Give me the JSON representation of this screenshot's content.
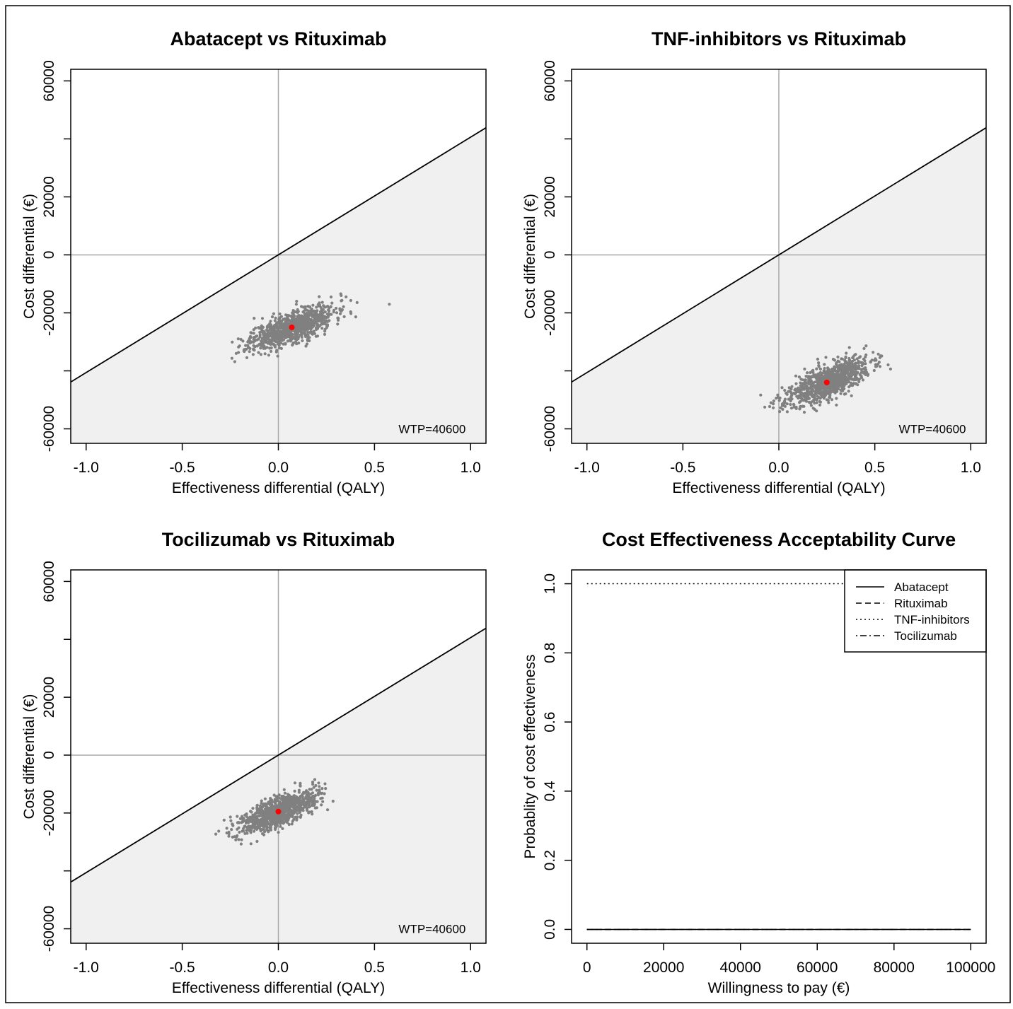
{
  "colors": {
    "scatter": "#808080",
    "mean_point": "#ff0000",
    "shade": "#f0f0f0",
    "zero_lines": "#a8a8a8"
  },
  "chart_data": [
    {
      "type": "scatter",
      "title": "Abatacept vs Rituximab",
      "xlabel": "Effectiveness differential (QALY)",
      "ylabel": "Cost differential (€)",
      "xlim": [
        -1.08,
        1.08
      ],
      "ylim": [
        -65000,
        64000
      ],
      "xticks": [
        "-1.0",
        "-0.5",
        "0.0",
        "0.5",
        "1.0"
      ],
      "xtick_values": [
        -1.0,
        -0.5,
        0.0,
        0.5,
        1.0
      ],
      "yticks": [
        "-60000",
        "-20000",
        "0",
        "20000",
        "60000"
      ],
      "ytick_values": [
        -60000,
        -20000,
        0,
        20000,
        60000
      ],
      "yticks_unlabeled": [
        -40000,
        40000
      ],
      "wtp_label": "WTP=40600",
      "wtp": 40600,
      "mean": {
        "x": 0.07,
        "y": -25000
      },
      "cloud": {
        "n": 900,
        "x_mean": 0.07,
        "x_sd": 0.11,
        "y_mean": -25000,
        "y_sd": 3800,
        "corr": 0.7,
        "seed": 11
      },
      "region_shaded": "below-wtp-line",
      "grid": false
    },
    {
      "type": "scatter",
      "title": "TNF-inhibitors vs Rituximab",
      "xlabel": "Effectiveness differential (QALY)",
      "ylabel": "Cost differential (€)",
      "xlim": [
        -1.08,
        1.08
      ],
      "ylim": [
        -65000,
        64000
      ],
      "xticks": [
        "-1.0",
        "-0.5",
        "0.0",
        "0.5",
        "1.0"
      ],
      "xtick_values": [
        -1.0,
        -0.5,
        0.0,
        0.5,
        1.0
      ],
      "yticks": [
        "-60000",
        "-20000",
        "0",
        "20000",
        "60000"
      ],
      "ytick_values": [
        -60000,
        -20000,
        0,
        20000,
        60000
      ],
      "yticks_unlabeled": [
        -40000,
        40000
      ],
      "wtp_label": "WTP=40600",
      "wtp": 40600,
      "mean": {
        "x": 0.25,
        "y": -44000
      },
      "cloud": {
        "n": 900,
        "x_mean": 0.25,
        "x_sd": 0.11,
        "y_mean": -44000,
        "y_sd": 4000,
        "corr": 0.7,
        "seed": 23
      },
      "region_shaded": "below-wtp-line",
      "grid": false
    },
    {
      "type": "scatter",
      "title": "Tocilizumab vs Rituximab",
      "xlabel": "Effectiveness differential (QALY)",
      "ylabel": "Cost differential (€)",
      "xlim": [
        -1.08,
        1.08
      ],
      "ylim": [
        -65000,
        64000
      ],
      "xticks": [
        "-1.0",
        "-0.5",
        "0.0",
        "0.5",
        "1.0"
      ],
      "xtick_values": [
        -1.0,
        -0.5,
        0.0,
        0.5,
        1.0
      ],
      "yticks": [
        "-60000",
        "-20000",
        "0",
        "20000",
        "60000"
      ],
      "ytick_values": [
        -60000,
        -20000,
        0,
        20000,
        60000
      ],
      "yticks_unlabeled": [
        -40000,
        40000
      ],
      "wtp_label": "WTP=40600",
      "wtp": 40600,
      "mean": {
        "x": 0.0,
        "y": -19500
      },
      "cloud": {
        "n": 900,
        "x_mean": 0.0,
        "x_sd": 0.1,
        "y_mean": -19500,
        "y_sd": 3600,
        "corr": 0.7,
        "seed": 37
      },
      "region_shaded": "below-wtp-line",
      "grid": false
    },
    {
      "type": "line",
      "title": "Cost Effectiveness Acceptability Curve",
      "xlabel": "Willingness to pay (€)",
      "ylabel": "Probablity of cost effectiveness",
      "xlim": [
        -4000,
        104000
      ],
      "ylim": [
        -0.04,
        1.04
      ],
      "xticks": [
        "0",
        "20000",
        "40000",
        "60000",
        "80000",
        "100000"
      ],
      "xtick_values": [
        0,
        20000,
        40000,
        60000,
        80000,
        100000
      ],
      "yticks": [
        "0.0",
        "0.2",
        "0.4",
        "0.6",
        "0.8",
        "1.0"
      ],
      "ytick_values": [
        0.0,
        0.2,
        0.4,
        0.6,
        0.8,
        1.0
      ],
      "legend_position": "top-right",
      "series": [
        {
          "name": "Abatacept",
          "dash": "solid",
          "x": [
            0,
            100000
          ],
          "y": [
            0,
            0
          ]
        },
        {
          "name": "Rituximab",
          "dash": "dashed",
          "x": [
            0,
            100000
          ],
          "y": [
            0,
            0
          ]
        },
        {
          "name": "TNF-inhibitors",
          "dash": "dotted",
          "x": [
            0,
            100000
          ],
          "y": [
            1,
            1
          ]
        },
        {
          "name": "Tocilizumab",
          "dash": "dotdash",
          "x": [
            0,
            100000
          ],
          "y": [
            0,
            0
          ]
        }
      ],
      "grid": false
    }
  ]
}
